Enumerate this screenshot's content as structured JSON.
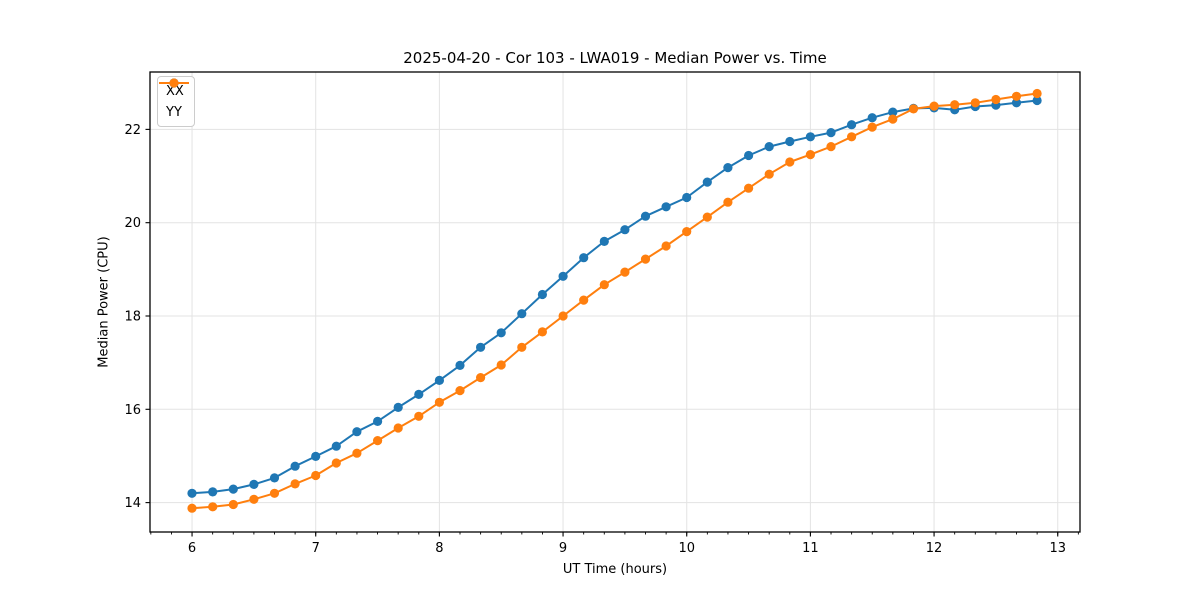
{
  "chart_data": {
    "type": "line",
    "title": "2025-04-20 - Cor 103 - LWA019 - Median Power vs. Time",
    "xlabel": "UT Time (hours)",
    "ylabel": "Median Power (CPU)",
    "xlim": [
      5.66,
      13.18
    ],
    "ylim": [
      13.37,
      23.23
    ],
    "xticks": [
      6,
      7,
      8,
      9,
      10,
      11,
      12,
      13
    ],
    "yticks": [
      14,
      16,
      18,
      20,
      22
    ],
    "x_minor_tick_step_hours": 0.166667,
    "grid": true,
    "grid_color": "#e3e3e3",
    "legend_position": "upper left",
    "x": [
      6.0,
      6.1667,
      6.3333,
      6.5,
      6.6667,
      6.8333,
      7.0,
      7.1667,
      7.3333,
      7.5,
      7.6667,
      7.8333,
      8.0,
      8.1667,
      8.3333,
      8.5,
      8.6667,
      8.8333,
      9.0,
      9.1667,
      9.3333,
      9.5,
      9.6667,
      9.8333,
      10.0,
      10.1667,
      10.3333,
      10.5,
      10.6667,
      10.8333,
      11.0,
      11.1667,
      11.3333,
      11.5,
      11.6667,
      11.8333,
      12.0,
      12.1667,
      12.3333,
      12.5,
      12.6667,
      12.8333
    ],
    "series": [
      {
        "name": "XX",
        "color": "#1f77b4",
        "values": [
          14.2,
          14.23,
          14.29,
          14.39,
          14.53,
          14.78,
          14.99,
          15.21,
          15.52,
          15.74,
          16.04,
          16.32,
          16.62,
          16.94,
          17.33,
          17.64,
          18.05,
          18.46,
          18.85,
          19.25,
          19.6,
          19.85,
          20.14,
          20.34,
          20.54,
          20.87,
          21.18,
          21.44,
          21.63,
          21.74,
          21.84,
          21.93,
          22.1,
          22.25,
          22.37,
          22.45,
          22.46,
          22.42,
          22.49,
          22.52,
          22.57,
          22.62
        ]
      },
      {
        "name": "YY",
        "color": "#ff7f0e",
        "values": [
          13.88,
          13.91,
          13.96,
          14.07,
          14.2,
          14.4,
          14.58,
          14.85,
          15.06,
          15.33,
          15.6,
          15.85,
          16.15,
          16.4,
          16.68,
          16.95,
          17.33,
          17.66,
          18.0,
          18.34,
          18.67,
          18.94,
          19.22,
          19.5,
          19.81,
          20.12,
          20.44,
          20.74,
          21.04,
          21.3,
          21.46,
          21.63,
          21.84,
          22.05,
          22.22,
          22.44,
          22.5,
          22.53,
          22.57,
          22.64,
          22.71,
          22.77
        ]
      }
    ]
  }
}
